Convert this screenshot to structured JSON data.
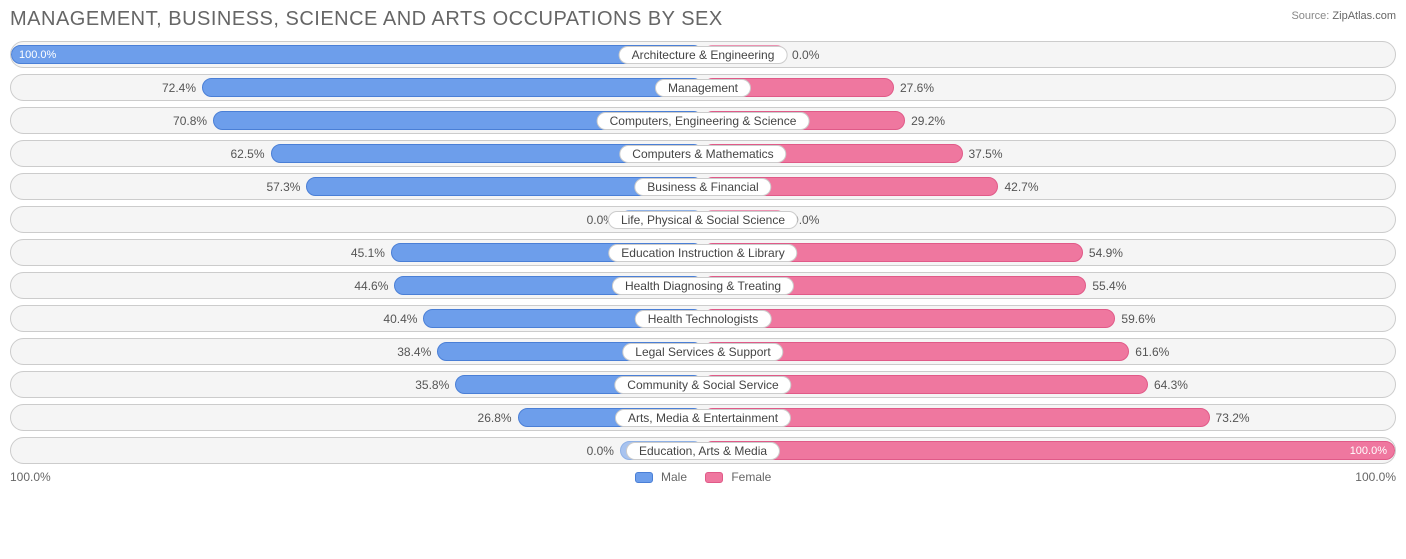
{
  "title": "MANAGEMENT, BUSINESS, SCIENCE AND ARTS OCCUPATIONS BY SEX",
  "source_label": "Source:",
  "source_value": "ZipAtlas.com",
  "axis_left": "100.0%",
  "axis_right": "100.0%",
  "legend": {
    "male": "Male",
    "female": "Female"
  },
  "colors": {
    "male_fill": "#6d9eeb",
    "male_border": "#4a7fd6",
    "male_zero_fill": "#a8c3ef",
    "male_zero_border": "#8fb1e6",
    "female_fill": "#ef779f",
    "female_border": "#e05a88",
    "female_zero_fill": "#f4a8c1",
    "female_zero_border": "#ec92b2",
    "row_bg": "#f5f5f5",
    "row_border": "#cccccc",
    "text": "#555555"
  },
  "min_bar_pct": 12,
  "rows": [
    {
      "label": "Architecture & Engineering",
      "male": 100.0,
      "female": 0.0,
      "male_txt": "100.0%",
      "female_txt": "0.0%"
    },
    {
      "label": "Management",
      "male": 72.4,
      "female": 27.6,
      "male_txt": "72.4%",
      "female_txt": "27.6%"
    },
    {
      "label": "Computers, Engineering & Science",
      "male": 70.8,
      "female": 29.2,
      "male_txt": "70.8%",
      "female_txt": "29.2%"
    },
    {
      "label": "Computers & Mathematics",
      "male": 62.5,
      "female": 37.5,
      "male_txt": "62.5%",
      "female_txt": "37.5%"
    },
    {
      "label": "Business & Financial",
      "male": 57.3,
      "female": 42.7,
      "male_txt": "57.3%",
      "female_txt": "42.7%"
    },
    {
      "label": "Life, Physical & Social Science",
      "male": 0.0,
      "female": 0.0,
      "male_txt": "0.0%",
      "female_txt": "0.0%"
    },
    {
      "label": "Education Instruction & Library",
      "male": 45.1,
      "female": 54.9,
      "male_txt": "45.1%",
      "female_txt": "54.9%"
    },
    {
      "label": "Health Diagnosing & Treating",
      "male": 44.6,
      "female": 55.4,
      "male_txt": "44.6%",
      "female_txt": "55.4%"
    },
    {
      "label": "Health Technologists",
      "male": 40.4,
      "female": 59.6,
      "male_txt": "40.4%",
      "female_txt": "59.6%"
    },
    {
      "label": "Legal Services & Support",
      "male": 38.4,
      "female": 61.6,
      "male_txt": "38.4%",
      "female_txt": "61.6%"
    },
    {
      "label": "Community & Social Service",
      "male": 35.8,
      "female": 64.3,
      "male_txt": "35.8%",
      "female_txt": "64.3%"
    },
    {
      "label": "Arts, Media & Entertainment",
      "male": 26.8,
      "female": 73.2,
      "male_txt": "26.8%",
      "female_txt": "73.2%"
    },
    {
      "label": "Education, Arts & Media",
      "male": 0.0,
      "female": 100.0,
      "male_txt": "0.0%",
      "female_txt": "100.0%"
    }
  ]
}
